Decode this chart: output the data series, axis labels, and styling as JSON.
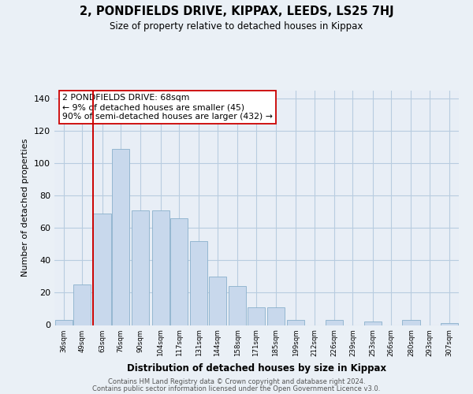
{
  "title": "2, PONDFIELDS DRIVE, KIPPAX, LEEDS, LS25 7HJ",
  "subtitle": "Size of property relative to detached houses in Kippax",
  "xlabel": "Distribution of detached houses by size in Kippax",
  "ylabel": "Number of detached properties",
  "bar_color": "#c8d8ec",
  "bar_edge_color": "#8ab0cc",
  "vline_color": "#cc0000",
  "vline_x_bin": 2,
  "annotation_line1": "2 PONDFIELDS DRIVE: 68sqm",
  "annotation_line2": "← 9% of detached houses are smaller (45)",
  "annotation_line3": "90% of semi-detached houses are larger (432) →",
  "annotation_box_color": "#ffffff",
  "annotation_box_edge": "#cc0000",
  "categories": [
    "36sqm",
    "49sqm",
    "63sqm",
    "76sqm",
    "90sqm",
    "104sqm",
    "117sqm",
    "131sqm",
    "144sqm",
    "158sqm",
    "171sqm",
    "185sqm",
    "199sqm",
    "212sqm",
    "226sqm",
    "239sqm",
    "253sqm",
    "266sqm",
    "280sqm",
    "293sqm",
    "307sqm"
  ],
  "bin_edges": [
    36,
    49,
    63,
    76,
    90,
    104,
    117,
    131,
    144,
    158,
    171,
    185,
    199,
    212,
    226,
    239,
    253,
    266,
    280,
    293,
    307
  ],
  "values": [
    3,
    25,
    69,
    109,
    71,
    71,
    66,
    52,
    30,
    24,
    11,
    11,
    3,
    0,
    3,
    0,
    2,
    0,
    3,
    0,
    1
  ],
  "ylim": [
    0,
    145
  ],
  "yticks": [
    0,
    20,
    40,
    60,
    80,
    100,
    120,
    140
  ],
  "footer_line1": "Contains HM Land Registry data © Crown copyright and database right 2024.",
  "footer_line2": "Contains public sector information licensed under the Open Government Licence v3.0.",
  "bg_color": "#eaf0f6",
  "plot_bg_color": "#e8eef6",
  "grid_color": "#b8cce0"
}
